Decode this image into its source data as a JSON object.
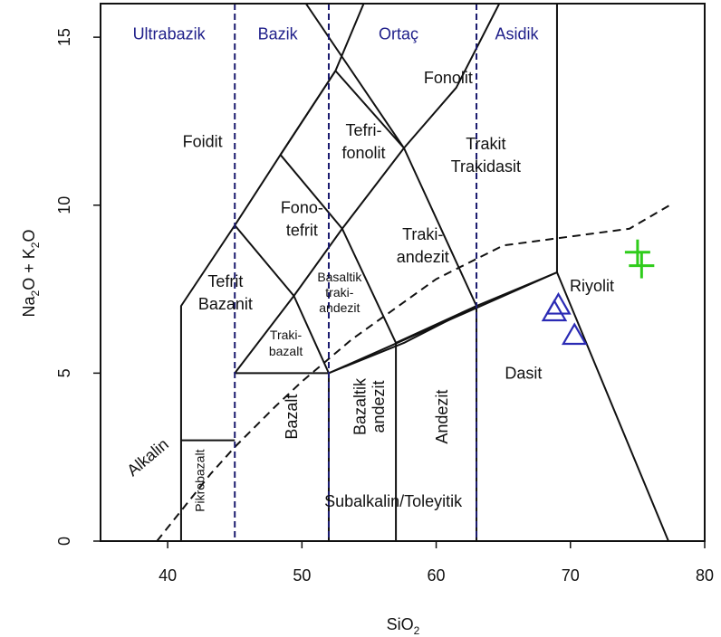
{
  "chart_data": {
    "type": "scatter",
    "title": "",
    "xlabel": {
      "main": "SiO",
      "sub": "2"
    },
    "ylabel": {
      "parts": [
        {
          "t": "Na"
        },
        {
          "t": "2",
          "sub": true
        },
        {
          "t": "O + K"
        },
        {
          "t": "2",
          "sub": true
        },
        {
          "t": "O"
        }
      ]
    },
    "xlim": [
      35,
      80
    ],
    "ylim": [
      0,
      16
    ],
    "xticks": [
      40,
      50,
      60,
      70,
      80
    ],
    "yticks": [
      0,
      5,
      10,
      15
    ],
    "grid": false,
    "colors": {
      "boundary": "#111111",
      "dashed": "#111111",
      "divider": "#1a1a6e",
      "group_label": "#1f1f8a",
      "triangle": "#2a2ab4",
      "plus": "#2ecc1a"
    },
    "group_labels": [
      {
        "text": "Ultrabazik",
        "x": 40.1,
        "y": 15.1
      },
      {
        "text": "Bazik",
        "x": 48.2,
        "y": 15.1
      },
      {
        "text": "Ortaç",
        "x": 57.2,
        "y": 15.1
      },
      {
        "text": "Asidik",
        "x": 66.0,
        "y": 15.1
      }
    ],
    "field_labels": [
      {
        "lines": [
          "Fonolit"
        ],
        "x": 60.9,
        "y": 13.8,
        "size": 18
      },
      {
        "lines": [
          "Foidit"
        ],
        "x": 42.6,
        "y": 11.9,
        "size": 18
      },
      {
        "lines": [
          "Tefri-",
          "fonolit"
        ],
        "x": 54.6,
        "y": 11.9,
        "size": 18,
        "lh": 25
      },
      {
        "lines": [
          "Trakit",
          "Trakidasit"
        ],
        "x": 63.7,
        "y": 11.5,
        "size": 18,
        "lh": 25
      },
      {
        "lines": [
          "Fono-",
          "tefrit"
        ],
        "x": 50.0,
        "y": 9.6,
        "size": 18,
        "lh": 25
      },
      {
        "lines": [
          "Traki-",
          "andezit"
        ],
        "x": 59.0,
        "y": 8.8,
        "size": 18,
        "lh": 25
      },
      {
        "lines": [
          "Tefrit",
          "Bazanit"
        ],
        "x": 44.3,
        "y": 7.4,
        "size": 18,
        "lh": 25
      },
      {
        "lines": [
          "Basaltik",
          "traki-",
          "andezit"
        ],
        "x": 52.8,
        "y": 7.4,
        "size": 14,
        "lh": 17
      },
      {
        "lines": [
          "Traki-",
          "bazalt"
        ],
        "x": 48.8,
        "y": 5.9,
        "size": 14,
        "lh": 18
      },
      {
        "lines": [
          "Riyolit"
        ],
        "x": 71.6,
        "y": 7.6,
        "size": 18
      },
      {
        "lines": [
          "Dasit"
        ],
        "x": 66.5,
        "y": 5.0,
        "size": 18
      },
      {
        "lines": [
          "Subalkalin/Toleyitik"
        ],
        "x": 56.8,
        "y": 1.2,
        "size": 18
      }
    ],
    "rotated_labels": [
      {
        "text": "Bazalt",
        "x": 49.2,
        "y": 3.7,
        "size": 18,
        "lines": [
          "Bazalt"
        ]
      },
      {
        "text": "Bazaltik andezit",
        "x": 55.0,
        "y": 4.0,
        "size": 18,
        "lines": [
          "Bazaltik",
          "andezit"
        ]
      },
      {
        "text": "Andezit",
        "x": 60.4,
        "y": 3.7,
        "size": 18,
        "lines": [
          "Andezit"
        ]
      },
      {
        "text": "Pikrobazalt",
        "x": 42.4,
        "y": 1.8,
        "size": 14,
        "lines": [
          "Pikrobazalt"
        ]
      },
      {
        "text": "Alkalin",
        "x": 38.5,
        "y": 2.5,
        "size": 18,
        "lines": [
          "Alkalin"
        ],
        "angle": -40
      }
    ],
    "field_boundaries": [
      [
        [
          41,
          0
        ],
        [
          41,
          7
        ],
        [
          45,
          9.4
        ],
        [
          48.4,
          11.5
        ],
        [
          52.5,
          14
        ],
        [
          54.6,
          16
        ]
      ],
      [
        [
          45,
          9.4
        ],
        [
          49.4,
          7.3
        ],
        [
          45,
          5
        ],
        [
          52,
          5
        ],
        [
          57.6,
          5.9
        ],
        [
          63,
          7
        ],
        [
          69,
          8
        ]
      ],
      [
        [
          52,
          0
        ],
        [
          52,
          5
        ],
        [
          69,
          8
        ],
        [
          77.3,
          0
        ]
      ],
      [
        [
          49.4,
          7.3
        ],
        [
          52,
          5
        ],
        [
          52,
          5
        ]
      ],
      [
        [
          49.4,
          7.3
        ],
        [
          53,
          9.3
        ],
        [
          57.6,
          11.7
        ],
        [
          61.5,
          13.5
        ],
        [
          64.7,
          16
        ]
      ],
      [
        [
          53,
          9.3
        ],
        [
          57,
          5.9
        ],
        [
          57,
          0
        ]
      ],
      [
        [
          57,
          5.9
        ],
        [
          63,
          7
        ],
        [
          63,
          0
        ]
      ],
      [
        [
          48.4,
          11.5
        ],
        [
          52.5,
          14
        ],
        [
          57.6,
          11.7
        ],
        [
          50.3,
          16
        ]
      ],
      [
        [
          53,
          9.3
        ],
        [
          48.4,
          11.5
        ]
      ],
      [
        [
          52.5,
          14
        ],
        [
          52.5,
          14
        ]
      ],
      [
        [
          57.6,
          11.7
        ],
        [
          63,
          7
        ]
      ],
      [
        [
          69,
          8
        ],
        [
          69,
          16
        ]
      ],
      [
        [
          41,
          3
        ],
        [
          45,
          3
        ]
      ]
    ],
    "dashed_line": [
      [
        39.2,
        0
      ],
      [
        40.0,
        0.4
      ],
      [
        43.2,
        2.0
      ],
      [
        45.0,
        2.8
      ],
      [
        48.0,
        4.0
      ],
      [
        50.0,
        4.75
      ],
      [
        53.7,
        6.0
      ],
      [
        57.2,
        7.0
      ],
      [
        60.0,
        7.8
      ],
      [
        65.0,
        8.8
      ],
      [
        74.4,
        9.3
      ],
      [
        77.4,
        10.0
      ]
    ],
    "divider_lines": [
      45,
      52,
      63
    ],
    "series": [
      {
        "marker": "triangle",
        "x": [
          68.8,
          69.1,
          70.3
        ],
        "y": [
          6.8,
          7.0,
          6.1
        ]
      },
      {
        "marker": "plus",
        "x": [
          75.0,
          75.3
        ],
        "y": [
          8.6,
          8.2
        ]
      }
    ]
  }
}
